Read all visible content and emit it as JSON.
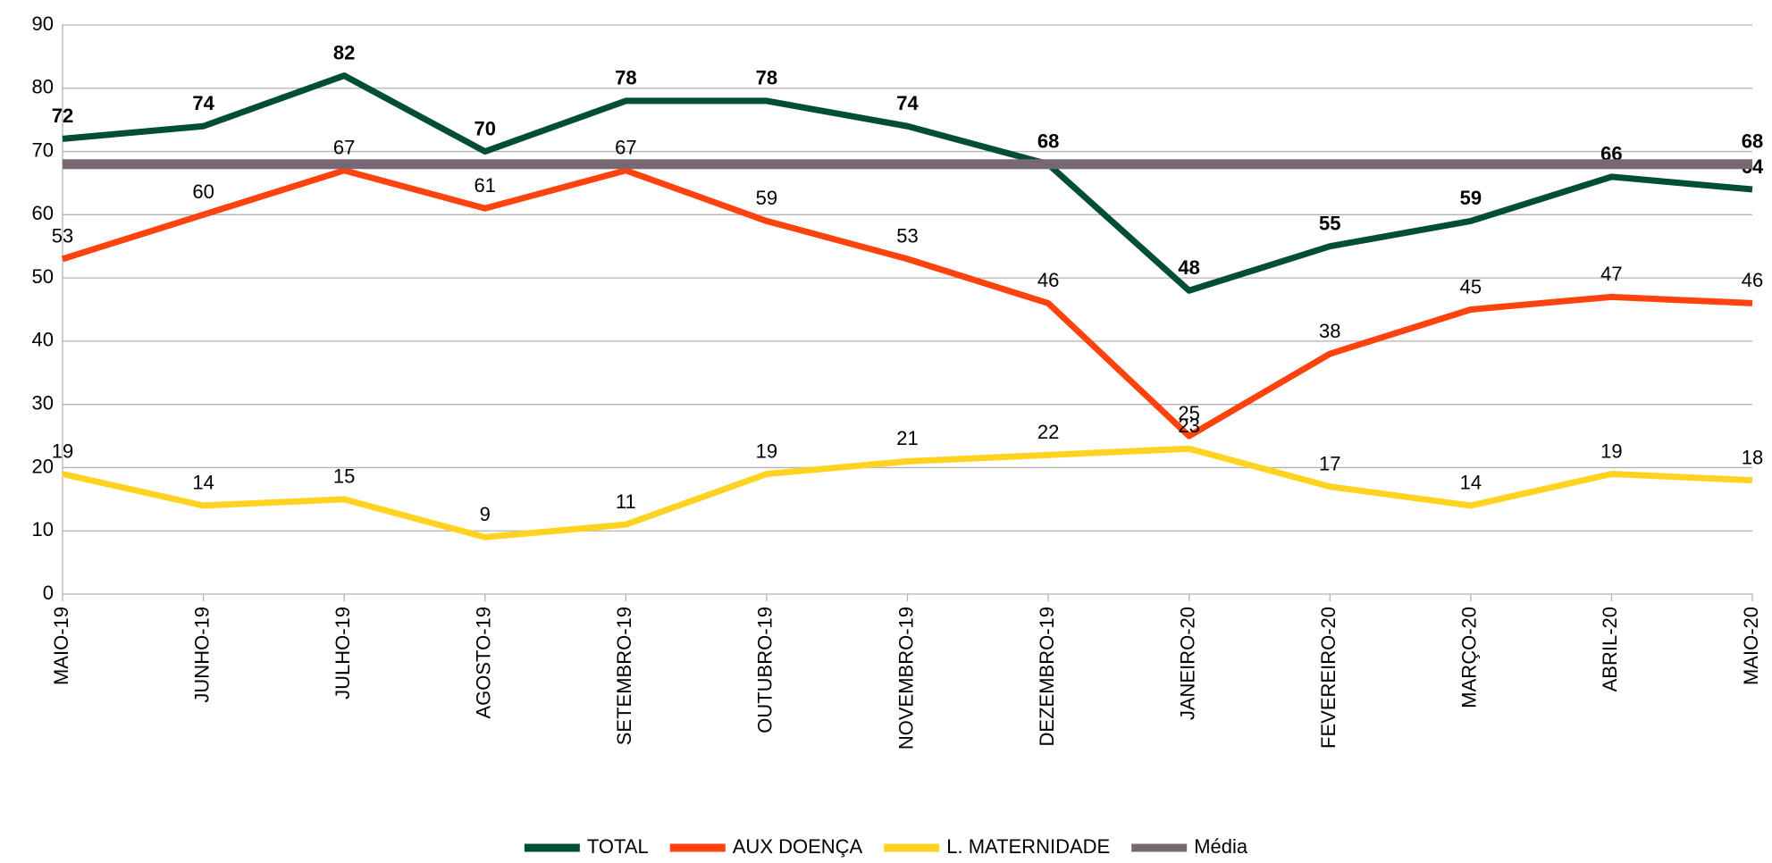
{
  "chart_data": {
    "type": "line",
    "categories": [
      "MAIO-19",
      "JUNHO-19",
      "JULHO-19",
      "AGOSTO-19",
      "SETEMBRO-19",
      "OUTUBRO-19",
      "NOVEMBRO-19",
      "DEZEMBRO-19",
      "JANEIRO-20",
      "FEVEREIRO-20",
      "MARÇO-20",
      "ABRIL-20",
      "MAIO-20"
    ],
    "series": [
      {
        "name": "TOTAL",
        "color": "#004f33",
        "bold_labels": true,
        "values": [
          72,
          74,
          82,
          70,
          78,
          78,
          74,
          68,
          48,
          55,
          59,
          66,
          64
        ]
      },
      {
        "name": "AUX DOENÇA",
        "color": "#ff420e",
        "values": [
          53,
          60,
          67,
          61,
          67,
          59,
          53,
          46,
          25,
          38,
          45,
          47,
          46
        ]
      },
      {
        "name": "L. MATERNIDADE",
        "color": "#ffd320",
        "values": [
          19,
          14,
          15,
          9,
          11,
          19,
          21,
          22,
          23,
          17,
          14,
          19,
          18
        ]
      },
      {
        "name": "Média",
        "color": "#776873",
        "bold_labels": true,
        "labels": "last",
        "values": [
          68,
          68,
          68,
          68,
          68,
          68,
          68,
          68,
          68,
          68,
          68,
          68,
          68
        ]
      }
    ],
    "ylim": [
      0,
      90
    ],
    "yticks": [
      0,
      10,
      20,
      30,
      40,
      50,
      60,
      70,
      80,
      90
    ],
    "grid": true,
    "legend": "bottom"
  }
}
